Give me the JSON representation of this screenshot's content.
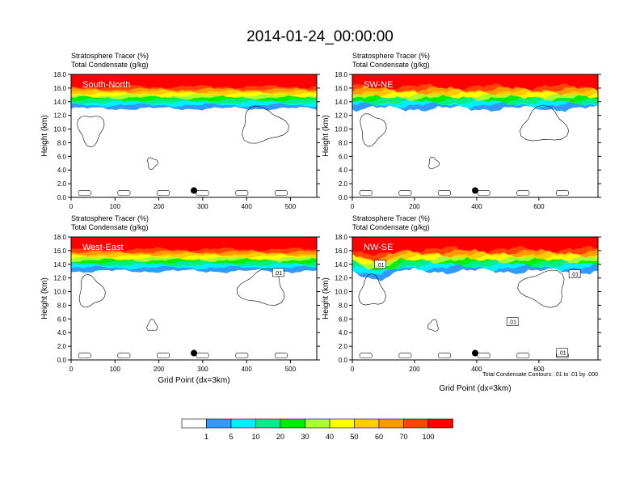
{
  "title": "2014-01-24_00:00:00",
  "colors": {
    "red": "#ff0000",
    "orange_red": "#ff4400",
    "orange": "#ff9900",
    "gold": "#ffcc00",
    "yellow": "#ffff00",
    "yellow_green": "#aaff33",
    "green": "#00ee00",
    "sea_green": "#00ee88",
    "cyan": "#00eeff",
    "blue": "#3399ff",
    "contour": "#000000",
    "marker": "#000000"
  },
  "chart_data": [
    {
      "type": "heatmap",
      "panel_label": "South-North",
      "subtitle_line1": "Stratosphere Tracer   (%)",
      "subtitle_line2": "Total Condensate   (g/kg)",
      "xlabel": "",
      "ylabel": "Height (km)",
      "xlim": [
        0,
        560
      ],
      "ylim": [
        0,
        18
      ],
      "xticks": [
        0,
        100,
        200,
        300,
        400,
        500
      ],
      "yticks": [
        0.0,
        2.0,
        4.0,
        6.0,
        8.0,
        10.0,
        12.0,
        14.0,
        16.0,
        18.0
      ],
      "marker": {
        "x": 280,
        "y": 1.0
      },
      "contour_labels": []
    },
    {
      "type": "heatmap",
      "panel_label": "SW-NE",
      "subtitle_line1": "Stratosphere Tracer   (%)",
      "subtitle_line2": "Total Condensate   (g/kg)",
      "xlabel": "",
      "ylabel": "Height (km)",
      "xlim": [
        0,
        790
      ],
      "ylim": [
        0,
        18
      ],
      "xticks": [
        0,
        200,
        400,
        600
      ],
      "yticks": [
        0.0,
        2.0,
        4.0,
        6.0,
        8.0,
        10.0,
        12.0,
        14.0,
        16.0,
        18.0
      ],
      "marker": {
        "x": 395,
        "y": 1.0
      },
      "contour_labels": []
    },
    {
      "type": "heatmap",
      "panel_label": "West-East",
      "subtitle_line1": "Stratosphere Tracer   (%)",
      "subtitle_line2": "Total Condensate   (g/kg)",
      "xlabel": "Grid Point (dx=3km)",
      "ylabel": "Height (km)",
      "xlim": [
        0,
        560
      ],
      "ylim": [
        0,
        18
      ],
      "xticks": [
        0,
        100,
        200,
        300,
        400,
        500
      ],
      "yticks": [
        0.0,
        2.0,
        4.0,
        6.0,
        8.0,
        10.0,
        12.0,
        14.0,
        16.0,
        18.0
      ],
      "marker": {
        "x": 280,
        "y": 1.0
      },
      "contour_labels": [
        {
          "text": ".01",
          "x": 472,
          "y": 12.8
        }
      ]
    },
    {
      "type": "heatmap",
      "panel_label": "NW-SE",
      "subtitle_line1": "Stratosphere Tracer   (%)",
      "subtitle_line2": "Total Condensate   (g/kg)",
      "xlabel": "Grid Point (dx=3km)",
      "ylabel": "Height (km)",
      "xlim": [
        0,
        790
      ],
      "ylim": [
        0,
        18
      ],
      "xticks": [
        0,
        200,
        400,
        600
      ],
      "yticks": [
        0.0,
        2.0,
        4.0,
        6.0,
        8.0,
        10.0,
        12.0,
        14.0,
        16.0,
        18.0
      ],
      "marker": {
        "x": 395,
        "y": 1.0
      },
      "footnote": "Total Condensate Contours: .01 to .01 by .000",
      "contour_labels": [
        {
          "text": ".01",
          "x": 90,
          "y": 14.0
        },
        {
          "text": ".01",
          "x": 715,
          "y": 12.6
        },
        {
          "text": ".01",
          "x": 515,
          "y": 5.6
        },
        {
          "text": ".01",
          "x": 675,
          "y": 1.1
        }
      ]
    }
  ],
  "colorbar": {
    "levels": [
      "1",
      "5",
      "10",
      "20",
      "30",
      "40",
      "50",
      "60",
      "70",
      "100"
    ]
  }
}
